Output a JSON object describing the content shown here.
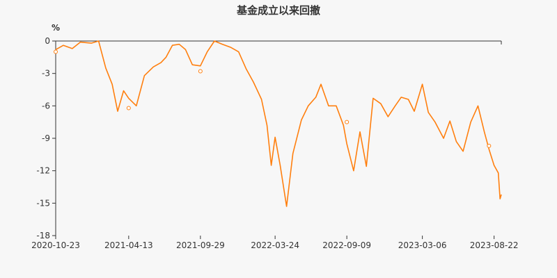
{
  "chart_data": {
    "type": "line",
    "title": "基金成立以来回撤",
    "y_unit": "%",
    "ylim": [
      -18,
      0
    ],
    "y_ticks": [
      0,
      -3,
      -6,
      -9,
      -12,
      -15,
      -18
    ],
    "y_tick_labels": [
      "0",
      "-3",
      "-6",
      "-9",
      "-12",
      "-15",
      "-18"
    ],
    "x_tick_labels": [
      "2020-10-23",
      "2021-04-13",
      "2021-09-29",
      "2022-03-24",
      "2022-09-09",
      "2023-03-06",
      "2023-08-22"
    ],
    "x_range": [
      "2020-10-23",
      "2023-09-08"
    ],
    "grid": false,
    "series": [
      {
        "color": "#ff7f0e",
        "x": [
          "2020-10-23",
          "2020-11-10",
          "2020-12-01",
          "2020-12-20",
          "2021-01-15",
          "2021-02-01",
          "2021-02-18",
          "2021-03-05",
          "2021-03-18",
          "2021-04-01",
          "2021-04-13",
          "2021-05-01",
          "2021-05-20",
          "2021-06-10",
          "2021-06-28",
          "2021-07-10",
          "2021-07-25",
          "2021-08-10",
          "2021-08-25",
          "2021-09-10",
          "2021-09-29",
          "2021-10-15",
          "2021-11-01",
          "2021-11-20",
          "2021-12-10",
          "2021-12-28",
          "2022-01-15",
          "2022-02-01",
          "2022-02-20",
          "2022-03-05",
          "2022-03-15",
          "2022-03-24",
          "2022-04-05",
          "2022-04-20",
          "2022-05-05",
          "2022-05-25",
          "2022-06-10",
          "2022-06-28",
          "2022-07-10",
          "2022-07-28",
          "2022-08-15",
          "2022-09-01",
          "2022-09-09",
          "2022-09-25",
          "2022-10-10",
          "2022-10-25",
          "2022-11-10",
          "2022-11-28",
          "2022-12-15",
          "2023-01-01",
          "2023-01-15",
          "2023-02-01",
          "2023-02-15",
          "2023-03-06",
          "2023-03-20",
          "2023-04-05",
          "2023-04-25",
          "2023-05-10",
          "2023-05-25",
          "2023-06-10",
          "2023-06-28",
          "2023-07-15",
          "2023-07-30",
          "2023-08-10",
          "2023-08-22",
          "2023-09-01",
          "2023-09-05",
          "2023-09-08"
        ],
        "y": [
          -0.8,
          -0.4,
          -0.7,
          -0.1,
          -0.2,
          0.0,
          -2.5,
          -4.0,
          -6.5,
          -4.6,
          -5.3,
          -6.0,
          -3.2,
          -2.4,
          -2.0,
          -1.5,
          -0.4,
          -0.3,
          -0.8,
          -2.2,
          -2.3,
          -1.0,
          0.0,
          -0.3,
          -0.6,
          -1.0,
          -2.6,
          -3.8,
          -5.4,
          -7.8,
          -11.5,
          -8.9,
          -11.5,
          -15.3,
          -10.4,
          -7.3,
          -6.0,
          -5.2,
          -4.0,
          -6.0,
          -6.0,
          -7.8,
          -9.5,
          -12.0,
          -8.4,
          -11.6,
          -5.3,
          -5.8,
          -7.0,
          -6.0,
          -5.2,
          -5.4,
          -6.5,
          -4.0,
          -6.6,
          -7.5,
          -9.0,
          -7.4,
          -9.3,
          -10.2,
          -7.5,
          -6.0,
          -8.4,
          -10.0,
          -11.5,
          -12.2,
          -14.6,
          -14.2
        ],
        "markers": [
          {
            "x": "2020-10-23",
            "y": -1.0
          },
          {
            "x": "2021-04-13",
            "y": -6.2
          },
          {
            "x": "2021-09-29",
            "y": -2.8
          },
          {
            "x": "2022-09-09",
            "y": -7.5
          },
          {
            "x": "2023-08-10",
            "y": -9.7
          }
        ]
      }
    ]
  }
}
